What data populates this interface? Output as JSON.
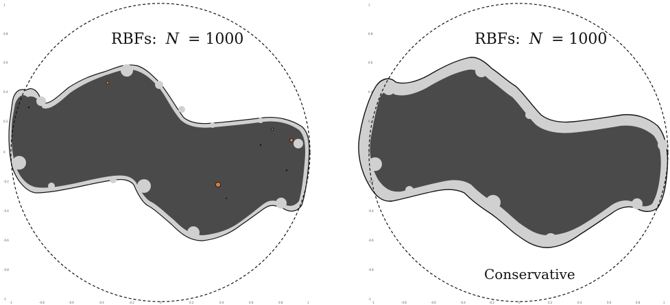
{
  "panels": [
    {
      "title_prefix": "RBFs:",
      "title_var": "N",
      "title_eq": "= 1000",
      "caption": "",
      "y_ticks": [
        "1",
        "0.8",
        "0.6",
        "0.4",
        "0.2",
        "0",
        "-0.2",
        "-0.4",
        "-0.6",
        "-0.8",
        "-1"
      ],
      "x_ticks": [
        "-1",
        "-0.8",
        "-0.6",
        "-0.4",
        "-0.2",
        "0",
        "0.2",
        "0.4",
        "0.6",
        "0.8",
        "1"
      ]
    },
    {
      "title_prefix": "RBFs:",
      "title_var": "N",
      "title_eq": "= 1000",
      "caption": "Conservative",
      "y_ticks": [
        "1",
        "0.8",
        "0.6",
        "0.4",
        "0.2",
        "0",
        "-0.2",
        "-0.4",
        "-0.6",
        "-0.8",
        "-1"
      ],
      "x_ticks": [
        "-1",
        "-0.8",
        "-0.6",
        "-0.4",
        "-0.2",
        "0",
        "0.2",
        "0.4",
        "0.6",
        "0.8",
        "1"
      ]
    }
  ],
  "colors": {
    "dark_region": "#4a4a4a",
    "light_region": "#d0d0d0",
    "outline": "#111111",
    "spurious_points": "#e07b39"
  }
}
